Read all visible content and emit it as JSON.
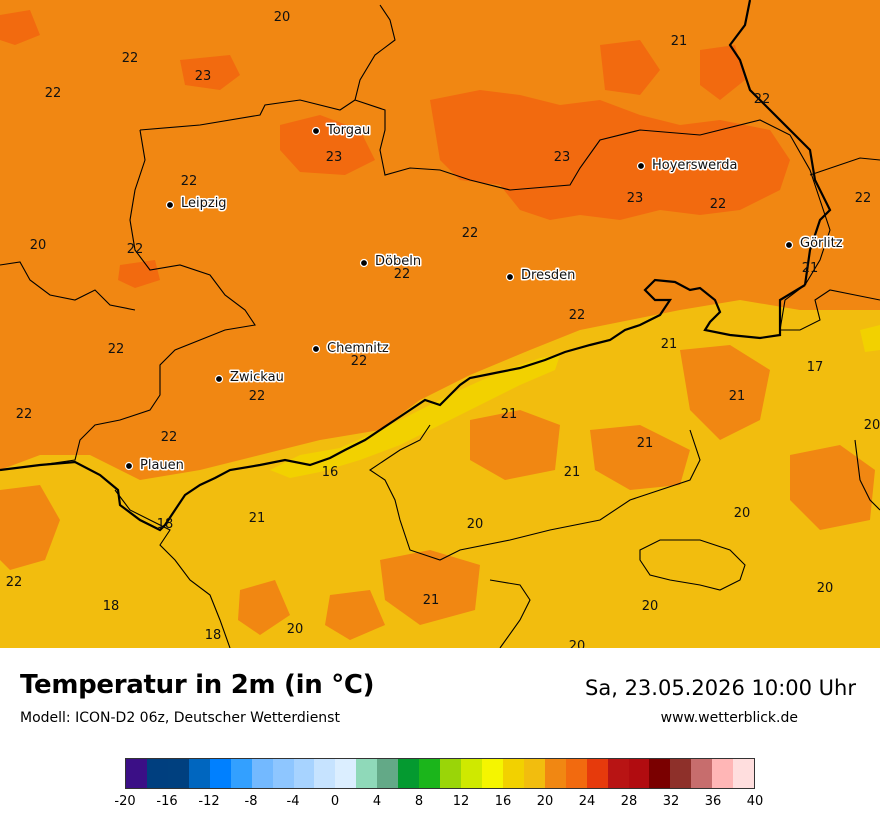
{
  "map": {
    "title": "Temperatur in 2m (in °C)",
    "model": "Modell: ICON-D2 06z, Deutscher Wetterdienst",
    "valid_time": "Sa, 23.05.2026 10:00 Uhr",
    "website": "www.wetterblick.de",
    "colors": {
      "c17_18": "#f2d100",
      "c18_20": "#f2bd0e",
      "c20_22": "#f18712",
      "c22_24": "#f26a0f",
      "border": "#000000",
      "city_dot": "#000000"
    },
    "cities": [
      {
        "name": "Torgau"
      },
      {
        "name": "Leipzig"
      },
      {
        "name": "Hoyerswerda"
      },
      {
        "name": "Görlitz"
      },
      {
        "name": "Döbeln"
      },
      {
        "name": "Dresden"
      },
      {
        "name": "Chemnitz"
      },
      {
        "name": "Zwickau"
      },
      {
        "name": "Plauen"
      }
    ],
    "temperature_labels": [
      "20",
      "21",
      "22",
      "23",
      "22",
      "22",
      "23",
      "23",
      "23",
      "22",
      "20",
      "22",
      "22",
      "22",
      "21",
      "22",
      "22",
      "17",
      "22",
      "22",
      "21",
      "22",
      "20",
      "22",
      "16",
      "21",
      "21",
      "18",
      "21",
      "20",
      "20",
      "22",
      "18",
      "21",
      "20",
      "18",
      "20",
      "20"
    ]
  },
  "legend": {
    "colors": [
      "#3b0f86",
      "#003f7f",
      "#00407f",
      "#0066bf",
      "#0080ff",
      "#33a0ff",
      "#73b9ff",
      "#8ec6ff",
      "#a7d3ff",
      "#c6e3ff",
      "#dbeeff",
      "#8fd9b9",
      "#63a987",
      "#049a30",
      "#1bb51b",
      "#9ad508",
      "#cfe900",
      "#f5f500",
      "#f2d100",
      "#f2bd0e",
      "#f18712",
      "#f26a0f",
      "#e63a0c",
      "#b81414",
      "#b10c10",
      "#7a0000",
      "#8e302a",
      "#c76d6d",
      "#ffb6b6",
      "#ffdede"
    ],
    "ticks": [
      "-20",
      "-16",
      "-12",
      "-8",
      "-4",
      "0",
      "4",
      "8",
      "12",
      "16",
      "20",
      "24",
      "28",
      "32",
      "36",
      "40"
    ]
  }
}
